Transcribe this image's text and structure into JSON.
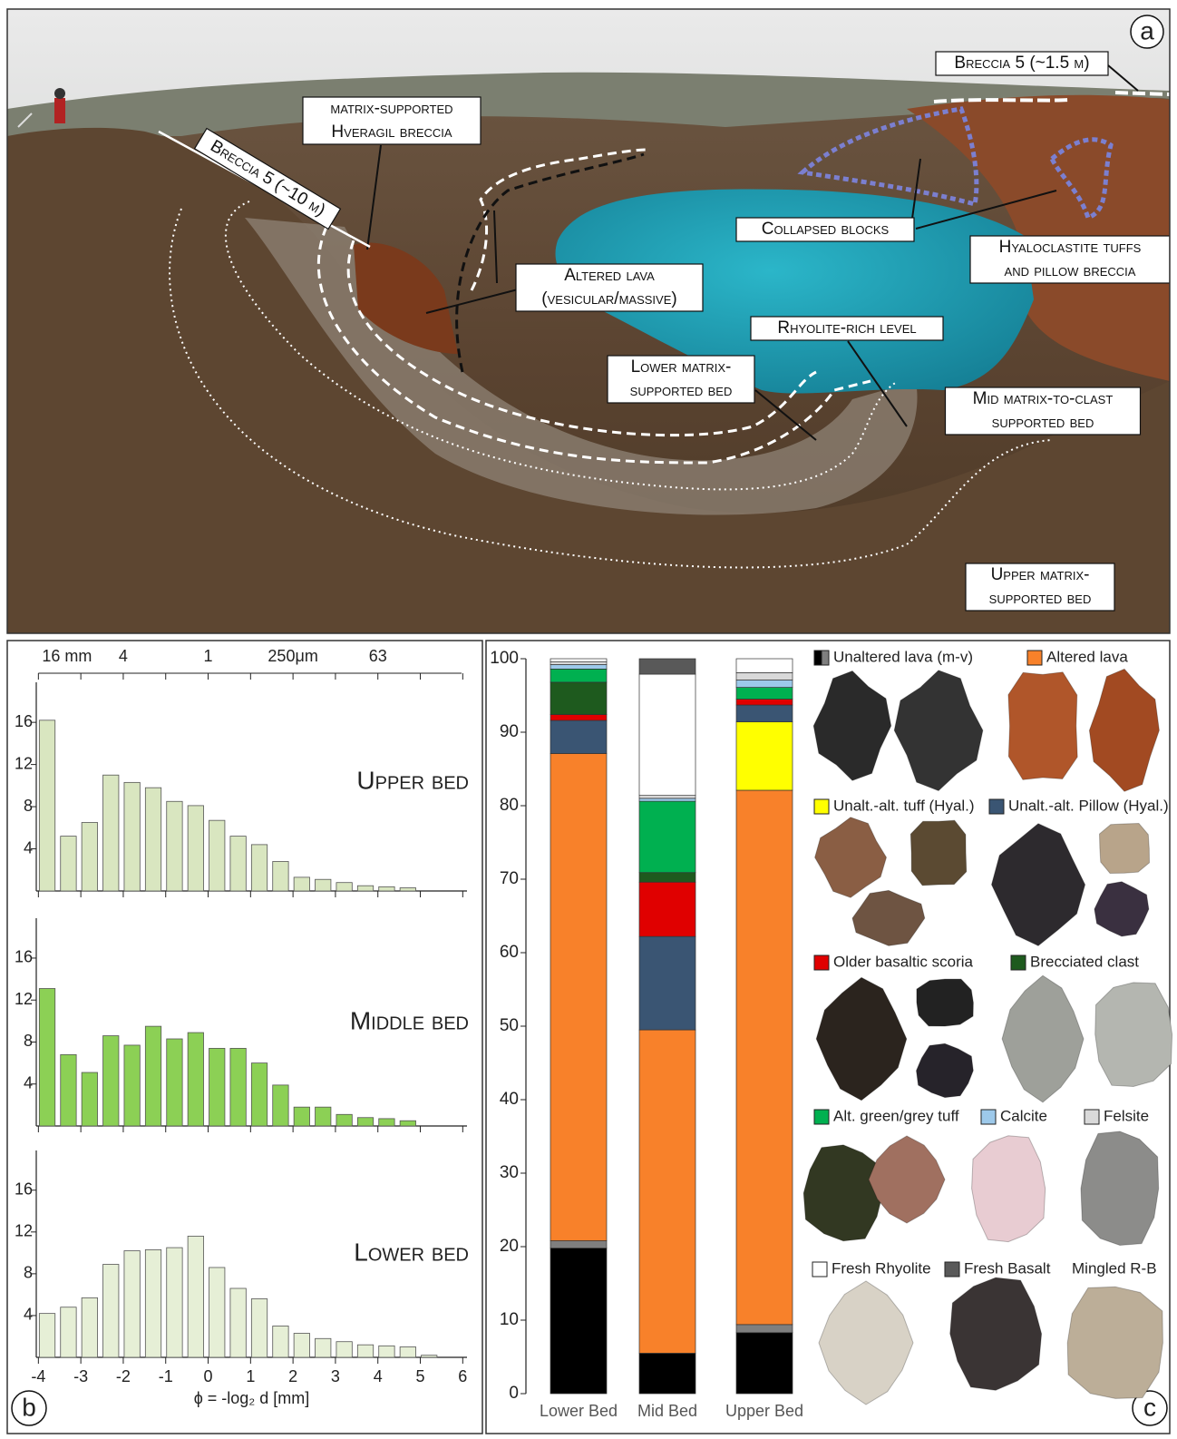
{
  "panel_labels": {
    "a": "a",
    "b": "b",
    "c": "c"
  },
  "photo_annotations": [
    {
      "lines": [
        "Breccia 5 (~1.5 m)"
      ]
    },
    {
      "lines": [
        "matrix-supported",
        "Hveragil breccia"
      ]
    },
    {
      "lines": [
        "Breccia 5 (~10 m)"
      ]
    },
    {
      "lines": [
        "Collapsed blocks"
      ]
    },
    {
      "lines": [
        "Hyaloclastite tuffs",
        "and pillow breccia"
      ]
    },
    {
      "lines": [
        "Altered lava",
        "(vesicular/massive)"
      ]
    },
    {
      "lines": [
        "Rhyolite-rich level"
      ]
    },
    {
      "lines": [
        "Lower matrix-",
        "supported bed"
      ]
    },
    {
      "lines": [
        "Mid matrix-to-clast",
        "supported bed"
      ]
    },
    {
      "lines": [
        "Upper matrix-",
        "supported bed"
      ]
    }
  ],
  "chart_data": [
    {
      "type": "histogram",
      "title": "Upper bed",
      "color": "#d9e6c0",
      "bins": [
        -4,
        -3.5,
        -3,
        -2.5,
        -2,
        -1.5,
        -1,
        -0.5,
        0,
        0.5,
        1,
        1.5,
        2,
        2.5,
        3,
        3.5,
        4,
        4.5,
        5,
        5.5
      ],
      "counts": [
        16.2,
        5.2,
        6.5,
        11,
        10.3,
        9.8,
        8.5,
        8.1,
        6.7,
        5.2,
        4.4,
        2.8,
        1.3,
        1.1,
        0.8,
        0.5,
        0.4,
        0.3,
        0
      ],
      "xlim": [
        -4.05,
        6.1
      ],
      "xticks": [
        -4,
        -3,
        -2,
        -1,
        0,
        1,
        2,
        3,
        4,
        5,
        6
      ],
      "x2ticks": [
        {
          "value": -4,
          "label": "16 mm"
        },
        {
          "value": -2,
          "label": "4"
        },
        {
          "value": 0,
          "label": "1"
        },
        {
          "value": 2,
          "label": "250μm"
        },
        {
          "value": 4,
          "label": "63"
        }
      ],
      "x2minor": [
        -3,
        -1,
        1,
        3,
        5,
        6
      ],
      "ylim": [
        0,
        19.8
      ],
      "yticks": [
        4,
        8,
        12,
        16
      ]
    },
    {
      "type": "histogram",
      "title": "Middle bed",
      "color": "#8cd055",
      "bins": [
        -4,
        -3.5,
        -3,
        -2.5,
        -2,
        -1.5,
        -1,
        -0.5,
        0,
        0.5,
        1,
        1.5,
        2,
        2.5,
        3,
        3.5,
        4,
        4.5,
        5,
        5.5
      ],
      "counts": [
        13.1,
        6.8,
        5.1,
        8.6,
        7.7,
        9.5,
        8.3,
        8.9,
        7.4,
        7.4,
        6.0,
        3.9,
        1.8,
        1.8,
        1.1,
        0.8,
        0.7,
        0.5,
        0
      ],
      "xlim": [
        -4.05,
        6.1
      ],
      "xticks": [
        -4,
        -3,
        -2,
        -1,
        0,
        1,
        2,
        3,
        4,
        5,
        6
      ],
      "ylim": [
        0,
        19.8
      ],
      "yticks": [
        4,
        8,
        12,
        16
      ]
    },
    {
      "type": "histogram",
      "title": "Lower bed",
      "color": "#e6efd6",
      "bins": [
        -4,
        -3.5,
        -3,
        -2.5,
        -2,
        -1.5,
        -1,
        -0.5,
        0,
        0.5,
        1,
        1.5,
        2,
        2.5,
        3,
        3.5,
        4,
        4.5,
        5,
        5.5
      ],
      "counts": [
        4.2,
        4.8,
        5.7,
        8.9,
        10.2,
        10.3,
        10.5,
        11.6,
        8.6,
        6.6,
        5.6,
        3.0,
        2.3,
        1.8,
        1.5,
        1.2,
        1.1,
        1.0,
        0.2
      ],
      "xlim": [
        -4.05,
        6.1
      ],
      "xticks": [
        -4,
        -3,
        -2,
        -1,
        0,
        1,
        2,
        3,
        4,
        5,
        6
      ],
      "xlabel": "ϕ = -log₂ d [mm]",
      "ylim": [
        0,
        19.8
      ],
      "yticks": [
        4,
        8,
        12,
        16
      ]
    },
    {
      "type": "stacked_bar",
      "categories": [
        "Lower Bed",
        "Mid Bed",
        "Upper Bed"
      ],
      "ylim": [
        0,
        100
      ],
      "yticks": [
        0,
        10,
        20,
        30,
        40,
        50,
        60,
        70,
        80,
        90,
        100
      ],
      "series": [
        {
          "name": "Unaltered lava (m-v)",
          "colors": [
            "#000000",
            "#7f7f7f"
          ],
          "values": [
            [
              19.8,
              1.0
            ],
            [
              5.5,
              0
            ],
            [
              8.3,
              1.1
            ]
          ]
        },
        {
          "name": "Altered lava",
          "color": "#f8812a",
          "values": [
            66.3,
            44,
            72.7
          ]
        },
        {
          "name": "Unalt.-alt. tuff (Hyal.)",
          "color": "#ffff00",
          "values": [
            0,
            0,
            9.3
          ]
        },
        {
          "name": "Unalt.-alt. Pillow (Hyal.)",
          "color": "#3a5573",
          "values": [
            4.5,
            12.7,
            2.3
          ]
        },
        {
          "name": "Older basaltic scoria",
          "color": "#e00000",
          "values": [
            0.8,
            7.4,
            0.8
          ]
        },
        {
          "name": "Brecciated clast",
          "color": "#1e5a1e",
          "values": [
            4.4,
            1.3,
            0
          ]
        },
        {
          "name": "Alt. green/grey tuff",
          "color": "#00b050",
          "values": [
            1.8,
            9.7,
            1.6
          ]
        },
        {
          "name": "Calcite",
          "color": "#9dc9ea",
          "values": [
            0.6,
            0.4,
            1.0
          ]
        },
        {
          "name": "Felsite",
          "color": "#d9d9d9",
          "values": [
            0.4,
            0.4,
            1.0
          ]
        },
        {
          "name": "Fresh Rhyolite",
          "color": "#ffffff",
          "values": [
            0.4,
            16.5,
            1.9
          ]
        },
        {
          "name": "Fresh Basalt",
          "color": "#595959",
          "values": [
            0,
            2.1,
            0
          ]
        }
      ],
      "note": "Mingled R-B"
    }
  ]
}
